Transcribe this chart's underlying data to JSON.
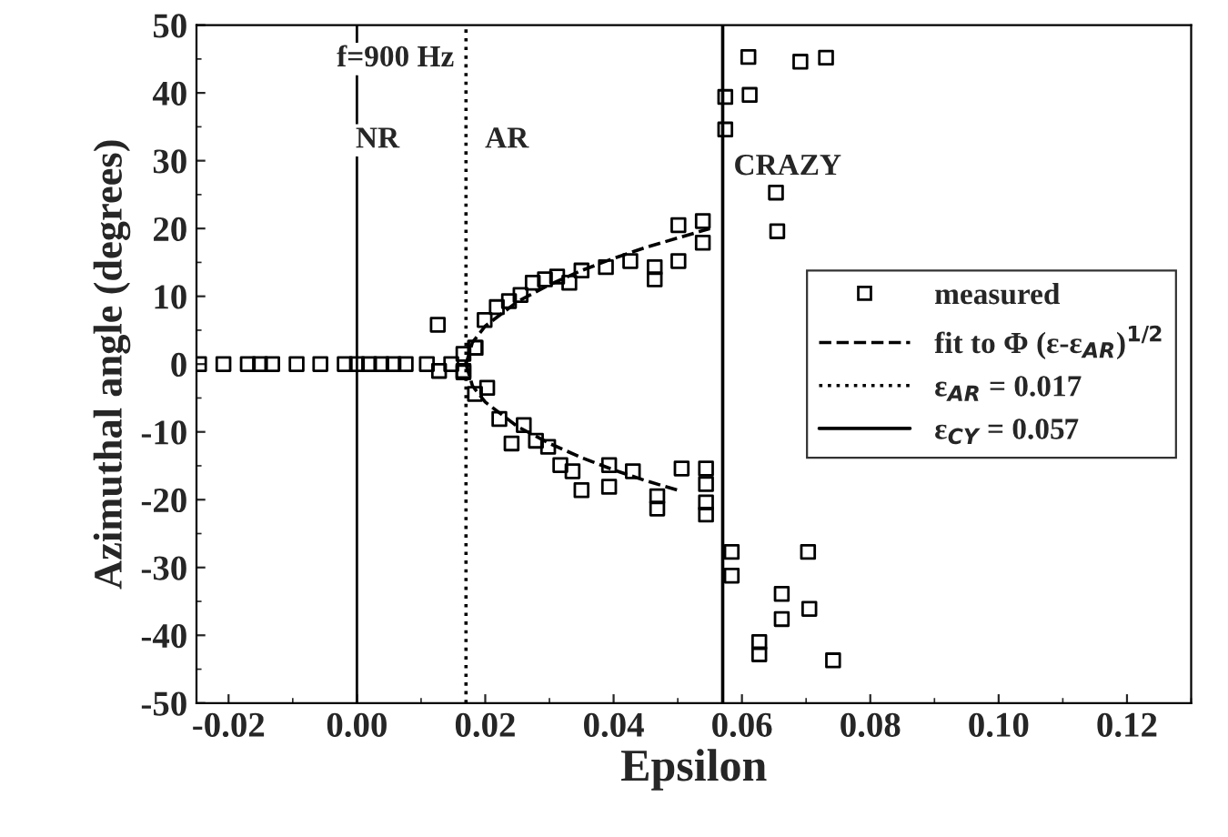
{
  "chart_data": {
    "type": "scatter",
    "xlabel": "Epsilon",
    "ylabel": "Azimuthal angle (degrees)",
    "xlim": [
      -0.025,
      0.13
    ],
    "xticks": [
      {
        "value": -0.02,
        "label": "-0.02"
      },
      {
        "value": 0.0,
        "label": "0.00"
      },
      {
        "value": 0.02,
        "label": "0.02"
      },
      {
        "value": 0.04,
        "label": "0.04"
      },
      {
        "value": 0.06,
        "label": "0.06"
      },
      {
        "value": 0.08,
        "label": "0.08"
      },
      {
        "value": 0.1,
        "label": "0.10"
      },
      {
        "value": 0.12,
        "label": "0.12"
      }
    ],
    "ylim": [
      -50,
      50
    ],
    "yticks": [
      -50,
      -40,
      -30,
      -20,
      -10,
      0,
      10,
      20,
      30,
      40,
      50
    ],
    "legend": "right",
    "grid": false,
    "series": [
      {
        "name": "measured",
        "color": "#000000",
        "marker": "square",
        "x": [
          -0.0246,
          -0.0208,
          -0.017,
          -0.0151,
          -0.0132,
          -0.0094,
          -0.0057,
          -0.0019,
          0.0,
          0.0019,
          0.0038,
          0.0057,
          0.0076,
          0.0109,
          0.0128,
          0.0126,
          0.0147,
          0.0166,
          0.0185,
          0.0166,
          0.0184,
          0.0199,
          0.0218,
          0.0237,
          0.0255,
          0.0274,
          0.0293,
          0.0312,
          0.0331,
          0.035,
          0.0388,
          0.0426,
          0.0464,
          0.0464,
          0.0501,
          0.0501,
          0.0539,
          0.0539,
          0.0166,
          0.0184,
          0.0203,
          0.0222,
          0.0241,
          0.026,
          0.0279,
          0.0298,
          0.0317,
          0.0336,
          0.035,
          0.0393,
          0.0393,
          0.043,
          0.0468,
          0.0468,
          0.0506,
          0.0544,
          0.0544,
          0.0544,
          0.0544,
          0.061,
          0.0691,
          0.0731,
          0.0574,
          0.0612,
          0.0574,
          0.0653,
          0.0655,
          0.0584,
          0.0584,
          0.0703,
          0.0662,
          0.0705,
          0.0662,
          0.0627,
          0.0627,
          0.0742
        ],
        "values": [
          0,
          0,
          0,
          0,
          0,
          0,
          0,
          0,
          0,
          0,
          0,
          0,
          0,
          0,
          -1,
          5.8,
          0,
          -1,
          2.4,
          1.5,
          2.4,
          6.5,
          8.4,
          9.3,
          10.2,
          12.0,
          12.5,
          12.9,
          12.0,
          13.8,
          14.3,
          15.2,
          14.3,
          12.5,
          15.2,
          20.5,
          21.1,
          17.9,
          -1.2,
          -4.4,
          -3.5,
          -8.1,
          -11.7,
          -9.0,
          -11.3,
          -12.2,
          -14.9,
          -15.8,
          -18.6,
          -18.1,
          -14.9,
          -15.8,
          -19.5,
          -21.3,
          -15.4,
          -15.4,
          -17.7,
          -20.4,
          -22.2,
          45.3,
          44.6,
          45.2,
          39.4,
          39.7,
          34.6,
          25.3,
          19.6,
          -27.7,
          -31.2,
          -27.7,
          -33.9,
          -36.1,
          -37.6,
          -41.0,
          -42.8,
          -43.7
        ]
      },
      {
        "name": "fit to Φ (ε-ε$_{AR}$)$^{1/2}$",
        "type": "line",
        "color": "#000000",
        "marker": "none",
        "line_style": "dashed",
        "x": [
          0.017,
          0.018,
          0.02,
          0.025,
          0.03,
          0.035,
          0.04,
          0.045,
          0.05,
          0.055,
          null,
          0.017,
          0.018,
          0.02,
          0.025,
          0.03,
          0.035,
          0.04,
          0.045,
          0.05
        ],
        "values": [
          0,
          3.2,
          5.6,
          9.2,
          11.7,
          13.8,
          15.6,
          17.2,
          18.6,
          20.0,
          null,
          0,
          -3.2,
          -5.6,
          -9.2,
          -11.7,
          -13.8,
          -15.6,
          -17.2,
          -18.6
        ]
      },
      {
        "name": "ε$_{AR}$ = 0.017",
        "type": "line",
        "color": "#000000",
        "marker": "none",
        "line_style": "dotted",
        "x": [
          0.017,
          0.017
        ],
        "values": [
          -50,
          50
        ]
      },
      {
        "name": "ε$_{CY}$ = 0.057",
        "type": "line",
        "color": "#000000",
        "marker": "none",
        "line_style": "solid",
        "x": [
          0.057,
          0.057
        ],
        "values": [
          -50,
          50
        ]
      }
    ],
    "ref_lines": [
      {
        "axis": "x",
        "value": 0.0,
        "line_style": "solid",
        "color": "#000000"
      }
    ],
    "annotations": [
      "f=900 Hz",
      "NR",
      "AR",
      "CRAZY"
    ]
  }
}
